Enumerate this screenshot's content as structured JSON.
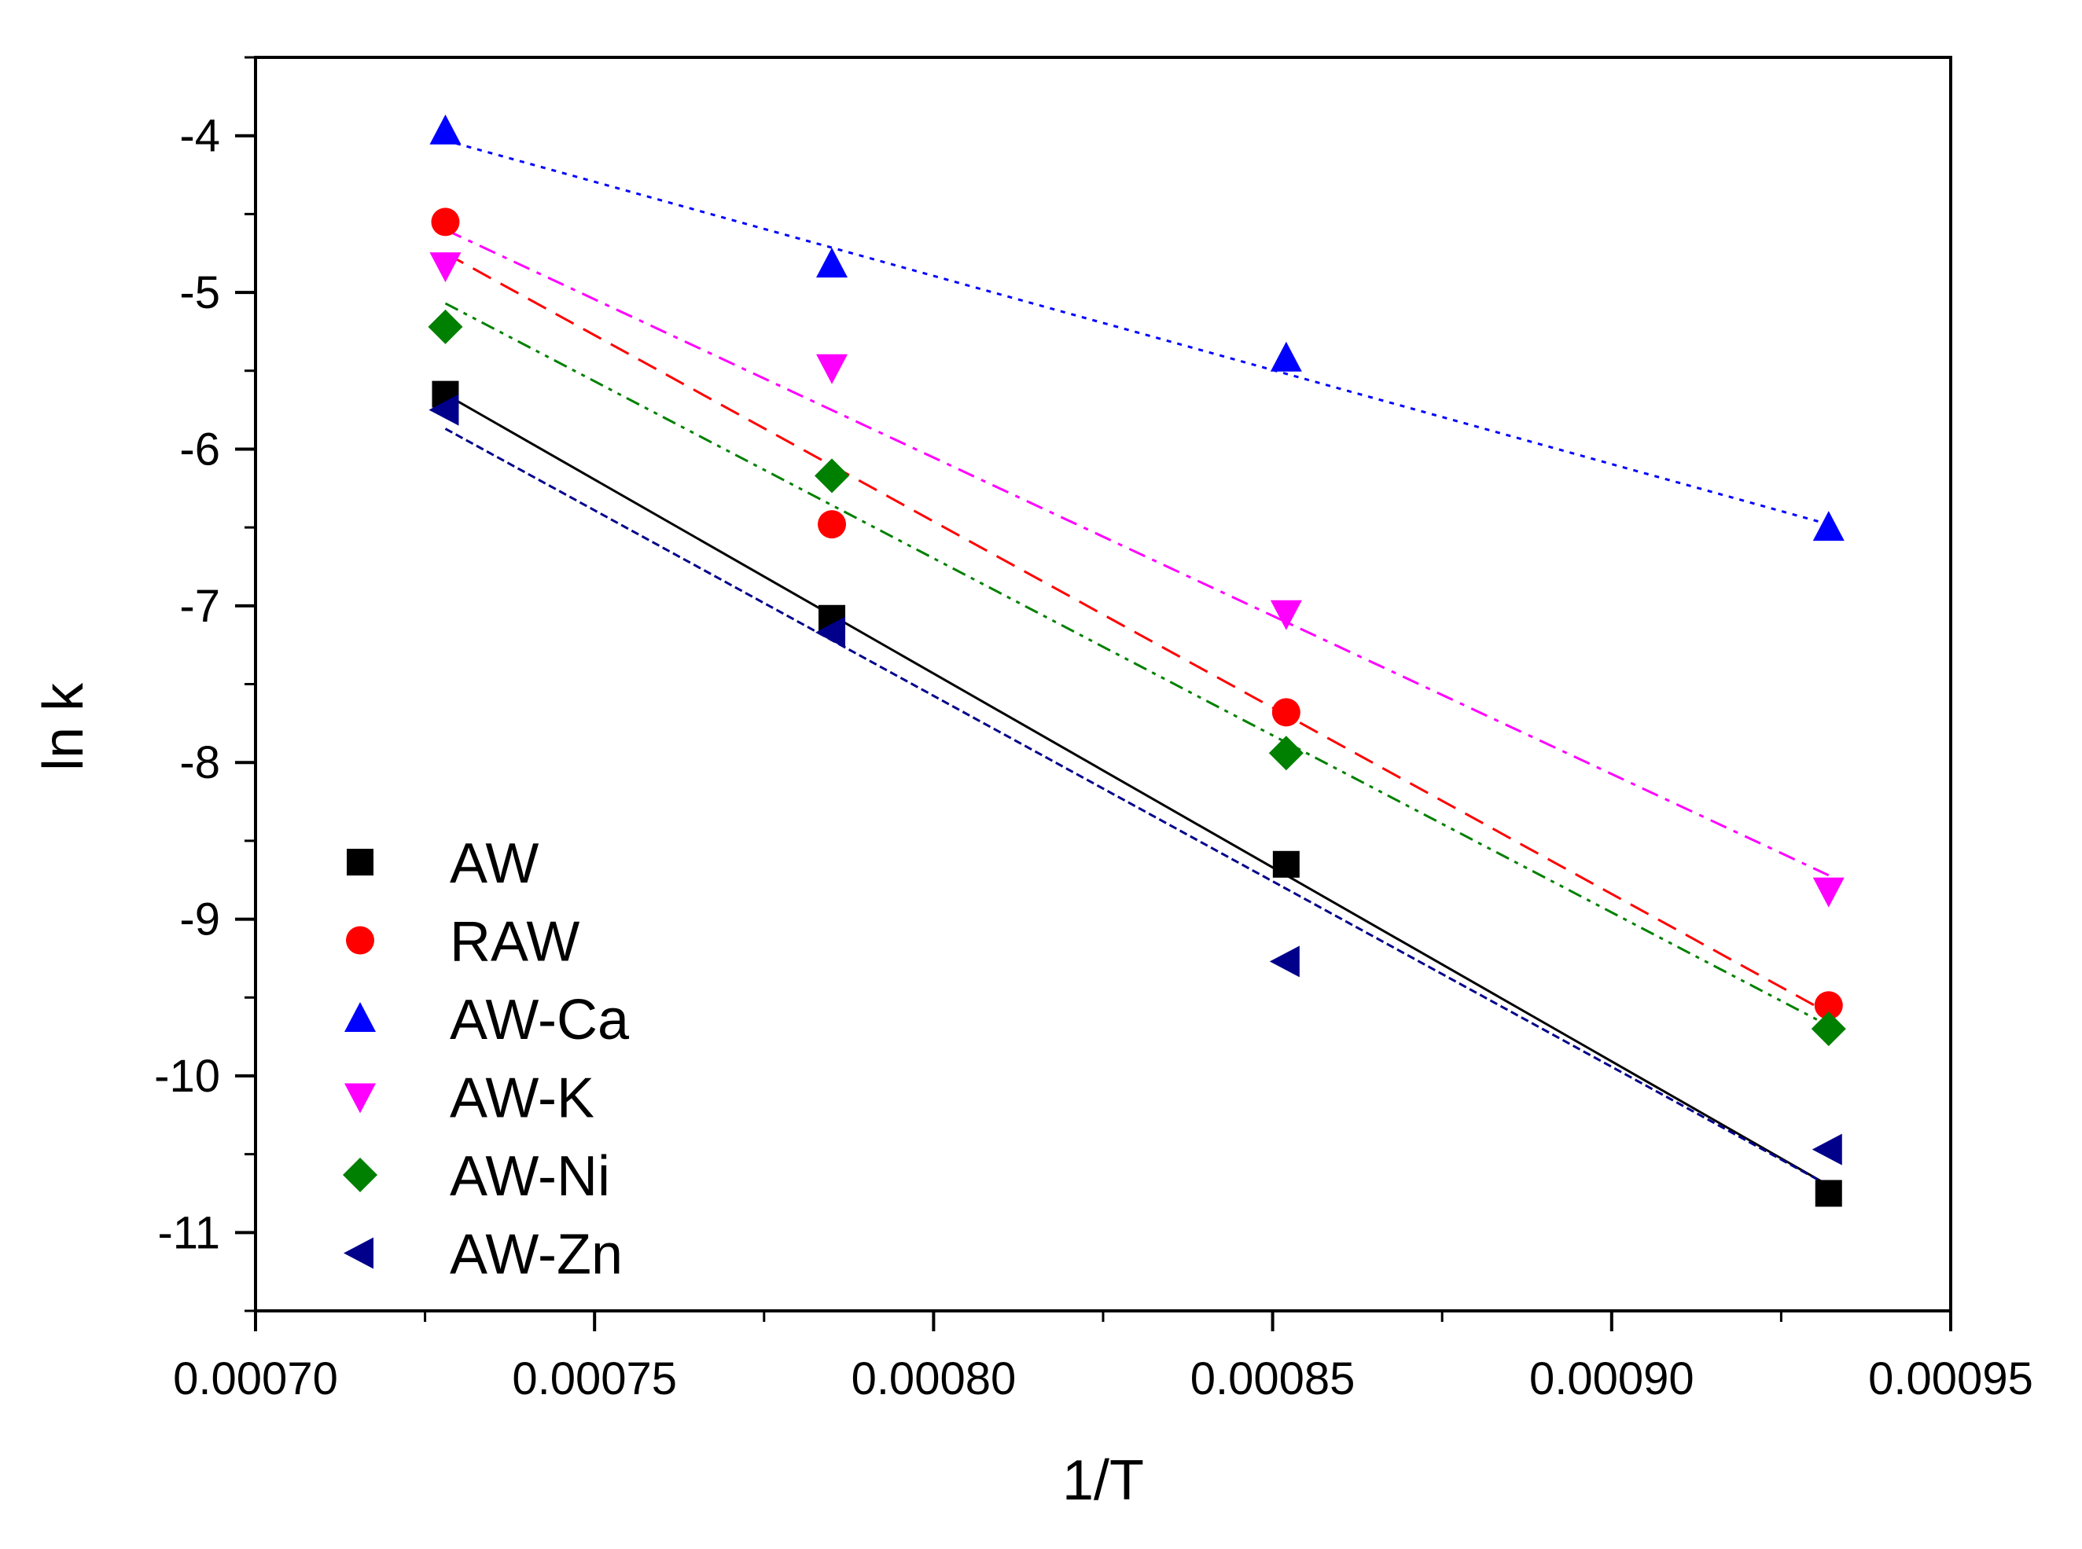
{
  "chart_data": {
    "type": "scatter",
    "title": "",
    "xlabel": "1/T",
    "ylabel": "ln k",
    "xlim": [
      0.0007,
      0.00095
    ],
    "ylim": [
      -11.5,
      -3.5
    ],
    "xticks": [
      0.0007,
      0.00075,
      0.0008,
      0.00085,
      0.0009,
      0.00095
    ],
    "xtick_labels": [
      "0.00070",
      "0.00075",
      "0.00080",
      "0.00085",
      "0.00090",
      "0.00095"
    ],
    "yticks": [
      -11,
      -10,
      -9,
      -8,
      -7,
      -6,
      -5,
      -4
    ],
    "ytick_labels": [
      "-11",
      "-10",
      "-9",
      "-8",
      "-7",
      "-6",
      "-5",
      "-4"
    ],
    "grid": false,
    "legend_position": "bottom-left",
    "x": [
      0.000728,
      0.000785,
      0.000852,
      0.000932
    ],
    "series": [
      {
        "name": "AW",
        "marker": "square",
        "color": "#000000",
        "line_style": "solid",
        "values": [
          -5.65,
          -7.08,
          -8.65,
          -10.75
        ],
        "fit": [
          -5.65,
          -10.7
        ]
      },
      {
        "name": "RAW",
        "marker": "circle",
        "color": "#ff0000",
        "line_style": "dashed",
        "values": [
          -4.55,
          -6.48,
          -7.68,
          -9.55
        ],
        "fit": [
          -4.75,
          -9.6
        ]
      },
      {
        "name": "AW-Ca",
        "marker": "triangle-up",
        "color": "#0000ff",
        "line_style": "dotted",
        "values": [
          -3.97,
          -4.82,
          -5.42,
          -6.5
        ],
        "fit": [
          -4.03,
          -6.48
        ]
      },
      {
        "name": "AW-K",
        "marker": "triangle-down",
        "color": "#ff00ff",
        "line_style": "dash-dot",
        "values": [
          -4.83,
          -5.48,
          -7.05,
          -8.82
        ],
        "fit": [
          -4.6,
          -8.72
        ]
      },
      {
        "name": "AW-Ni",
        "marker": "diamond",
        "color": "#008000",
        "line_style": "dash-dot-dot",
        "values": [
          -5.22,
          -6.17,
          -7.94,
          -9.7
        ],
        "fit": [
          -5.07,
          -9.68
        ]
      },
      {
        "name": "AW-Zn",
        "marker": "triangle-left",
        "color": "#00008b",
        "line_style": "short-dash",
        "values": [
          -5.75,
          -7.17,
          -9.27,
          -10.47
        ],
        "fit": [
          -5.87,
          -10.7
        ]
      }
    ]
  }
}
